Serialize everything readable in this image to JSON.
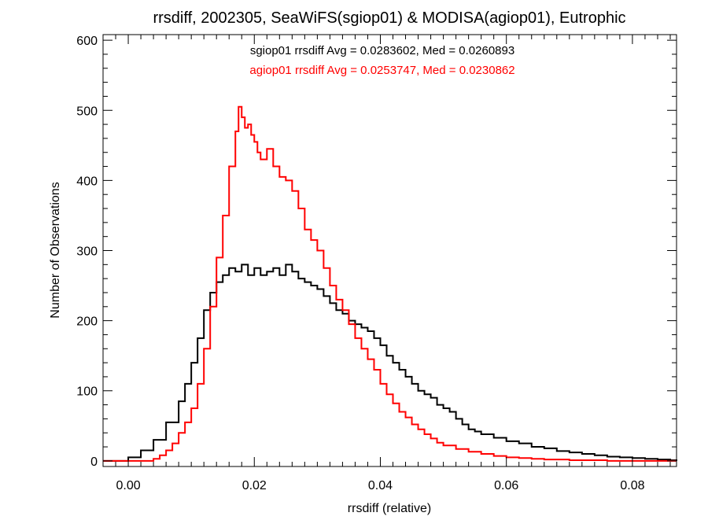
{
  "chart_data": {
    "type": "line",
    "title": "rrsdiff, 2002305, SeaWiFS(sgiop01) & MODISA(agiop01), Eutrophic",
    "xlabel": "rrsdiff (relative)",
    "ylabel": "Number of Observations",
    "xlim": [
      -0.004,
      0.087
    ],
    "ylim": [
      -8,
      608
    ],
    "x_ticks": [
      0.0,
      0.02,
      0.04,
      0.06,
      0.08
    ],
    "x_tick_labels": [
      "0.00",
      "0.02",
      "0.04",
      "0.06",
      "0.08"
    ],
    "y_ticks": [
      0,
      100,
      200,
      300,
      400,
      500,
      600
    ],
    "y_tick_labels": [
      "0",
      "100",
      "200",
      "300",
      "400",
      "500",
      "600"
    ],
    "annotations": [
      {
        "text": "sgiop01 rrsdiff Avg = 0.0283602, Med = 0.0260893",
        "color": "#000000"
      },
      {
        "text": "agiop01 rrsdiff Avg = 0.0253747, Med = 0.0230862",
        "color": "#ff0000"
      }
    ],
    "series": [
      {
        "name": "sgiop01",
        "color": "#000000",
        "style": "step",
        "x": [
          -0.004,
          0.0,
          0.002,
          0.004,
          0.006,
          0.008,
          0.009,
          0.01,
          0.011,
          0.012,
          0.013,
          0.014,
          0.015,
          0.016,
          0.017,
          0.018,
          0.019,
          0.02,
          0.021,
          0.022,
          0.023,
          0.024,
          0.025,
          0.026,
          0.027,
          0.028,
          0.029,
          0.03,
          0.031,
          0.032,
          0.033,
          0.034,
          0.035,
          0.036,
          0.037,
          0.038,
          0.039,
          0.04,
          0.041,
          0.042,
          0.043,
          0.044,
          0.045,
          0.046,
          0.047,
          0.048,
          0.049,
          0.05,
          0.051,
          0.052,
          0.053,
          0.054,
          0.055,
          0.056,
          0.058,
          0.06,
          0.062,
          0.064,
          0.066,
          0.068,
          0.07,
          0.072,
          0.074,
          0.076,
          0.078,
          0.08,
          0.082,
          0.084,
          0.086,
          0.087
        ],
        "y": [
          0,
          5,
          15,
          30,
          55,
          85,
          110,
          140,
          175,
          215,
          240,
          255,
          265,
          275,
          270,
          280,
          265,
          275,
          265,
          270,
          275,
          265,
          280,
          270,
          260,
          255,
          250,
          245,
          235,
          225,
          215,
          210,
          200,
          195,
          190,
          185,
          175,
          165,
          150,
          140,
          130,
          120,
          110,
          100,
          95,
          90,
          80,
          75,
          70,
          60,
          52,
          45,
          42,
          38,
          33,
          28,
          25,
          20,
          18,
          14,
          12,
          10,
          8,
          6,
          5,
          4,
          3,
          2,
          1,
          0
        ]
      },
      {
        "name": "agiop01",
        "color": "#ff0000",
        "style": "step",
        "x": [
          -0.004,
          0.0,
          0.002,
          0.004,
          0.005,
          0.006,
          0.007,
          0.008,
          0.009,
          0.01,
          0.011,
          0.012,
          0.013,
          0.014,
          0.015,
          0.016,
          0.017,
          0.0175,
          0.018,
          0.0185,
          0.019,
          0.0195,
          0.02,
          0.0205,
          0.021,
          0.022,
          0.023,
          0.024,
          0.025,
          0.026,
          0.027,
          0.028,
          0.029,
          0.03,
          0.031,
          0.032,
          0.033,
          0.034,
          0.035,
          0.036,
          0.037,
          0.038,
          0.039,
          0.04,
          0.041,
          0.042,
          0.043,
          0.044,
          0.045,
          0.046,
          0.047,
          0.048,
          0.049,
          0.05,
          0.052,
          0.054,
          0.056,
          0.058,
          0.06,
          0.062,
          0.064,
          0.066,
          0.068,
          0.07,
          0.072,
          0.074,
          0.076,
          0.08,
          0.084,
          0.087
        ],
        "y": [
          0,
          0,
          0,
          3,
          8,
          15,
          25,
          40,
          55,
          75,
          110,
          160,
          220,
          290,
          350,
          420,
          470,
          505,
          490,
          475,
          480,
          465,
          455,
          440,
          430,
          445,
          420,
          405,
          400,
          385,
          360,
          330,
          315,
          300,
          275,
          250,
          230,
          215,
          195,
          175,
          160,
          145,
          130,
          110,
          95,
          82,
          70,
          62,
          52,
          45,
          38,
          32,
          26,
          22,
          17,
          13,
          10,
          7,
          5,
          4,
          3,
          2,
          2,
          1,
          1,
          1,
          0,
          0,
          0,
          0
        ]
      }
    ],
    "grid": false,
    "legend": "none"
  }
}
